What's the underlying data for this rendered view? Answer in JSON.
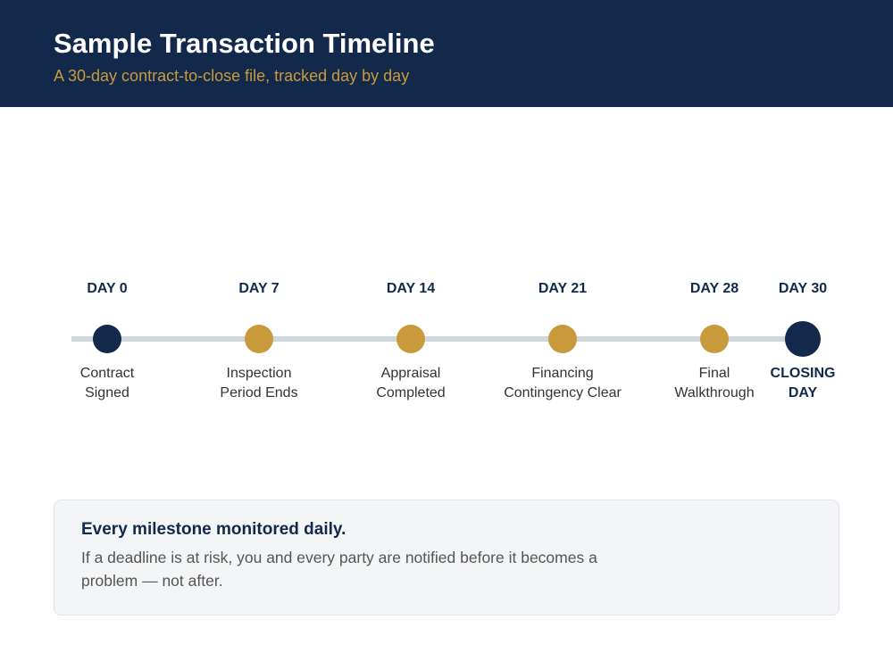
{
  "header": {
    "title": "Sample Transaction Timeline",
    "subtitle": "A 30-day contract-to-close file, tracked day by day"
  },
  "milestones": [
    {
      "day": "DAY 0",
      "label": [
        "Contract",
        "Signed"
      ]
    },
    {
      "day": "DAY 7",
      "label": [
        "Inspection",
        "Period Ends"
      ]
    },
    {
      "day": "DAY 14",
      "label": [
        "Appraisal",
        "Completed"
      ]
    },
    {
      "day": "DAY 21",
      "label": [
        "Financing",
        "Contingency Clear"
      ]
    },
    {
      "day": "DAY 28",
      "label": [
        "Final",
        "Walkthrough"
      ]
    },
    {
      "day": "DAY 30",
      "label": [
        "CLOSING",
        "DAY"
      ]
    }
  ],
  "callout": {
    "title": "Every milestone monitored daily.",
    "text": "If a deadline is at risk, you and every party are notified before it becomes a problem — not after."
  }
}
